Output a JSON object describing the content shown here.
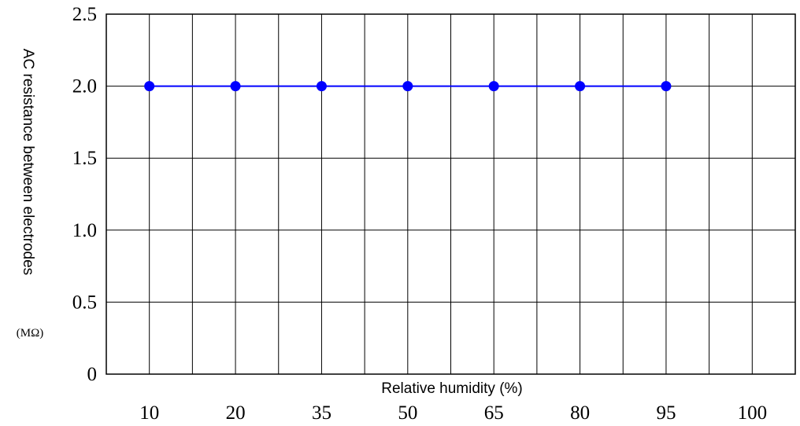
{
  "chart_data": {
    "type": "line",
    "title": "",
    "xlabel": "Relative humidity (%)",
    "ylabel": "AC resistance between electrodes",
    "yunit": "(MΩ)",
    "categories": [
      "10",
      "20",
      "35",
      "50",
      "65",
      "80",
      "95",
      "100"
    ],
    "series": [
      {
        "values": [
          2.0,
          2.0,
          2.0,
          2.0,
          2.0,
          2.0,
          2.0,
          null
        ]
      }
    ],
    "ylim": [
      0,
      2.5
    ],
    "yticks": [
      "0",
      "0.5",
      "1.0",
      "1.5",
      "2.0",
      "2.5"
    ],
    "grid": true,
    "colors": {
      "series": "#0000ff",
      "grid": "#000000"
    }
  }
}
